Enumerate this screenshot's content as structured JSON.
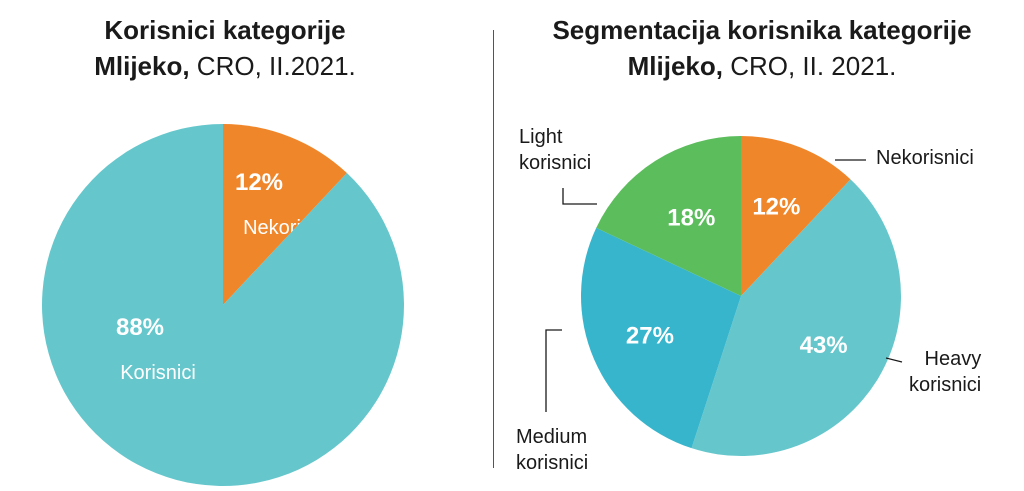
{
  "chart_data": [
    {
      "type": "pie",
      "title_bold": "Korisnici kategorije",
      "title_line2_bold": "Mlijeko,",
      "title_line2_light": " CRO, II.2021.",
      "slices": [
        {
          "label": "Nekorisnici",
          "value": 12,
          "value_label": "12%",
          "color": "#f0862a"
        },
        {
          "label": "Korisnici",
          "value": 88,
          "value_label": "88%",
          "color": "#65c7cc"
        }
      ]
    },
    {
      "type": "pie",
      "title_bold": "Segmentacija korisnika kategorije",
      "title_line2_bold": "Mlijeko,",
      "title_line2_light": " CRO, II. 2021.",
      "slices": [
        {
          "label": "Nekorisnici",
          "value": 12,
          "value_label": "12%",
          "color": "#f0862a"
        },
        {
          "label": "Heavy korisnici",
          "label_lines": [
            "Heavy",
            "korisnici"
          ],
          "value": 43,
          "value_label": "43%",
          "color": "#65c7cc"
        },
        {
          "label": "Medium korisnici",
          "label_lines": [
            "Medium",
            "korisnici"
          ],
          "value": 27,
          "value_label": "27%",
          "color": "#36b5cd"
        },
        {
          "label": "Light korisnici",
          "label_lines": [
            "Light",
            "korisnici"
          ],
          "value": 18,
          "value_label": "18%",
          "color": "#5bbd5c"
        }
      ]
    }
  ]
}
